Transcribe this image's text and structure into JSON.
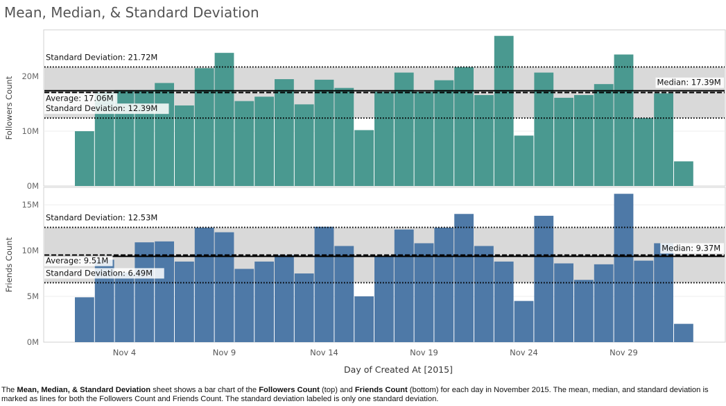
{
  "title": "Mean, Median, & Standard Deviation",
  "caption": {
    "t1": "The ",
    "b1": "Mean, Median, & Standard Deviation",
    "t2": " sheet shows a bar chart of the ",
    "b2": "Followers Count",
    "t3": " (top) and ",
    "b3": "Friends Count",
    "t4": " (bottom) for each day in November 2015. The mean, median, and standard deviation is marked as lines for both the Followers Count and Friends Count. The standard deviation labeled is only one standard deviation."
  },
  "colors": {
    "followers": "#4a9990",
    "friends": "#4e79a7",
    "band": "#d9d9d9"
  },
  "chart_data": [
    {
      "type": "bar",
      "x": [
        "2015-11-02",
        "2015-11-03",
        "2015-11-04",
        "2015-11-05",
        "2015-11-06",
        "2015-11-07",
        "2015-11-08",
        "2015-11-09",
        "2015-11-10",
        "2015-11-11",
        "2015-11-12",
        "2015-11-13",
        "2015-11-14",
        "2015-11-15",
        "2015-11-16",
        "2015-11-17",
        "2015-11-18",
        "2015-11-19",
        "2015-11-20",
        "2015-11-21",
        "2015-11-22",
        "2015-11-23",
        "2015-11-24",
        "2015-11-25",
        "2015-11-26",
        "2015-11-27",
        "2015-11-28",
        "2015-11-29",
        "2015-11-30",
        "2015-12-01",
        "2015-12-02"
      ],
      "series": [
        {
          "values": [
            10.0,
            17.0,
            17.5,
            17.5,
            18.8,
            14.7,
            21.5,
            24.3,
            15.5,
            16.3,
            19.5,
            14.9,
            19.4,
            17.9,
            10.2,
            17.2,
            20.7,
            17.2,
            19.3,
            21.7,
            16.6,
            27.4,
            9.2,
            20.7,
            16.1,
            16.6,
            18.6,
            24.0,
            12.4,
            16.9,
            4.5
          ]
        }
      ],
      "ylabel": "Followers Count",
      "unit": "M",
      "ylim": [
        0,
        28.5
      ],
      "yticks": [
        {
          "value": 0,
          "label": "0M"
        },
        {
          "value": 10,
          "label": "10M"
        },
        {
          "value": 20,
          "label": "20M"
        }
      ],
      "reference_lines": [
        {
          "kind": "std-dev",
          "value": 21.72,
          "label": "Standard Deviation: 21.72M",
          "style": "dotted",
          "label_side": "left"
        },
        {
          "kind": "median",
          "value": 17.39,
          "label": "Median: 17.39M",
          "style": "solid",
          "label_side": "right"
        },
        {
          "kind": "average",
          "value": 17.06,
          "label": "Average: 17.06M",
          "style": "dashed",
          "label_side": "left"
        },
        {
          "kind": "std-dev",
          "value": 12.39,
          "label": "Standard Deviation: 12.39M",
          "style": "dotted",
          "label_side": "left"
        }
      ],
      "band": [
        12.39,
        21.72
      ],
      "color": "#4a9990"
    },
    {
      "type": "bar",
      "x": [
        "2015-11-02",
        "2015-11-03",
        "2015-11-04",
        "2015-11-05",
        "2015-11-06",
        "2015-11-07",
        "2015-11-08",
        "2015-11-09",
        "2015-11-10",
        "2015-11-11",
        "2015-11-12",
        "2015-11-13",
        "2015-11-14",
        "2015-11-15",
        "2015-11-16",
        "2015-11-17",
        "2015-11-18",
        "2015-11-19",
        "2015-11-20",
        "2015-11-21",
        "2015-11-22",
        "2015-11-23",
        "2015-11-24",
        "2015-11-25",
        "2015-11-26",
        "2015-11-27",
        "2015-11-28",
        "2015-11-29",
        "2015-11-30",
        "2015-12-01",
        "2015-12-02"
      ],
      "series": [
        {
          "values": [
            4.9,
            9.0,
            7.6,
            10.9,
            11.0,
            8.8,
            12.5,
            12.0,
            8.0,
            8.8,
            9.5,
            7.5,
            12.6,
            10.5,
            5.0,
            9.4,
            12.3,
            10.8,
            12.5,
            14.0,
            10.5,
            8.8,
            4.5,
            13.8,
            8.6,
            6.8,
            8.5,
            16.2,
            8.9,
            10.8,
            2.0
          ]
        }
      ],
      "ylabel": "Friends Count",
      "unit": "M",
      "ylim": [
        0,
        16.9
      ],
      "yticks": [
        {
          "value": 0,
          "label": "0M"
        },
        {
          "value": 5,
          "label": "5M"
        },
        {
          "value": 10,
          "label": "10M"
        },
        {
          "value": 15,
          "label": "15M"
        }
      ],
      "reference_lines": [
        {
          "kind": "std-dev",
          "value": 12.53,
          "label": "Standard Deviation: 12.53M",
          "style": "dotted",
          "label_side": "left"
        },
        {
          "kind": "average",
          "value": 9.51,
          "label": "Average: 9.51M",
          "style": "dashed",
          "label_side": "left"
        },
        {
          "kind": "median",
          "value": 9.37,
          "label": "Median: 9.37M",
          "style": "solid",
          "label_side": "right"
        },
        {
          "kind": "std-dev",
          "value": 6.49,
          "label": "Standard Deviation: 6.49M",
          "style": "dotted",
          "label_side": "left"
        }
      ],
      "band": [
        6.49,
        12.53
      ],
      "color": "#4e79a7"
    }
  ],
  "x_axis": {
    "label": "Day of Created At [2015]",
    "ticks": [
      {
        "date": "2015-11-04",
        "label": "Nov 4"
      },
      {
        "date": "2015-11-09",
        "label": "Nov 9"
      },
      {
        "date": "2015-11-14",
        "label": "Nov 14"
      },
      {
        "date": "2015-11-19",
        "label": "Nov 19"
      },
      {
        "date": "2015-11-24",
        "label": "Nov 24"
      },
      {
        "date": "2015-11-29",
        "label": "Nov 29"
      }
    ]
  }
}
